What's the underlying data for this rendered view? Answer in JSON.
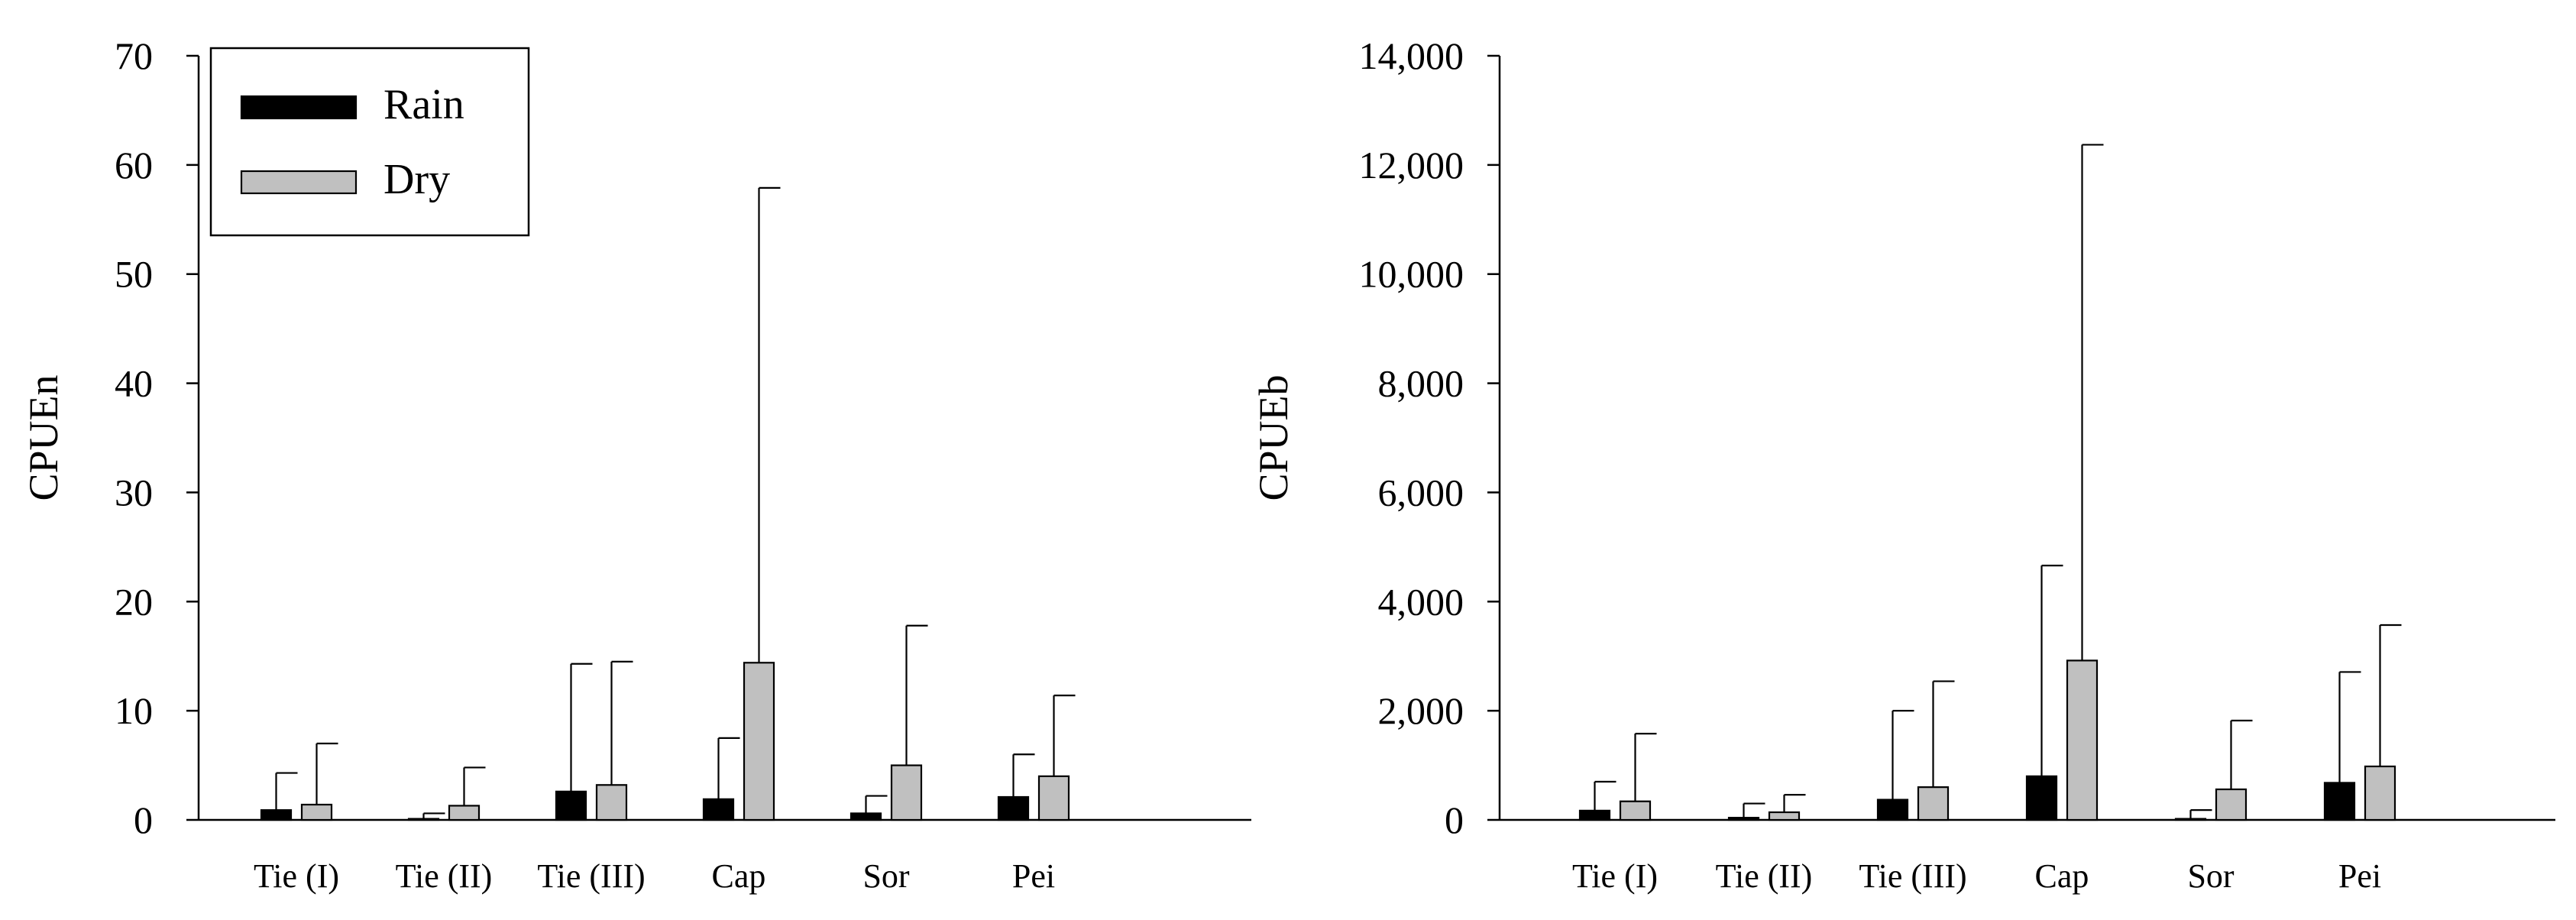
{
  "chart_data": [
    {
      "type": "bar",
      "ylabel": "CPUEn",
      "xlabel": "",
      "ylim": [
        0,
        70
      ],
      "yticks": [
        0,
        10,
        20,
        30,
        40,
        50,
        60,
        70
      ],
      "ytick_labels": [
        "0",
        "10",
        "20",
        "30",
        "40",
        "50",
        "60",
        "70"
      ],
      "categories": [
        "Tie (I)",
        "Tie (II)",
        "Tie (III)",
        "Cap",
        "Sor",
        "Pei"
      ],
      "series": [
        {
          "name": "Rain",
          "color": "#000000",
          "values": [
            0.9,
            0.1,
            2.6,
            1.9,
            0.6,
            2.1
          ],
          "error": [
            3.4,
            0.5,
            11.7,
            5.6,
            1.6,
            3.9
          ]
        },
        {
          "name": "Dry",
          "color": "#c0c0c0",
          "values": [
            1.4,
            1.3,
            3.2,
            14.4,
            5.0,
            4.0
          ],
          "error": [
            5.6,
            3.5,
            11.3,
            43.5,
            12.8,
            7.4
          ]
        }
      ],
      "legend": {
        "position": "top-left",
        "entries": [
          "Rain",
          "Dry"
        ]
      },
      "grid": false
    },
    {
      "type": "bar",
      "ylabel": "CPUEb",
      "xlabel": "",
      "ylim": [
        0,
        14000
      ],
      "yticks": [
        0,
        2000,
        4000,
        6000,
        8000,
        10000,
        12000,
        14000
      ],
      "ytick_labels": [
        "0",
        "2,000",
        "4,000",
        "6,000",
        "8,000",
        "10,000",
        "12,000",
        "14,000"
      ],
      "categories": [
        "Tie (I)",
        "Tie (II)",
        "Tie (III)",
        "Cap",
        "Sor",
        "Pei"
      ],
      "series": [
        {
          "name": "Rain",
          "color": "#000000",
          "values": [
            170,
            40,
            370,
            800,
            20,
            680
          ],
          "error": [
            530,
            260,
            1630,
            3860,
            160,
            2030
          ]
        },
        {
          "name": "Dry",
          "color": "#c0c0c0",
          "values": [
            340,
            140,
            600,
            2920,
            560,
            980
          ],
          "error": [
            1240,
            320,
            1940,
            9450,
            1260,
            2590
          ]
        }
      ],
      "grid": false
    }
  ]
}
